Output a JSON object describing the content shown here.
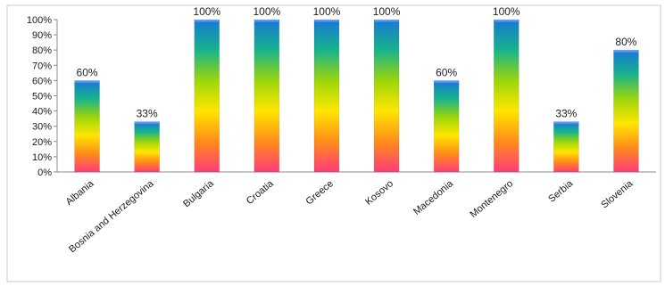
{
  "chart_data": {
    "type": "bar",
    "categories": [
      "Albania",
      "Bosnia and Herzegovina",
      "Bulgaria",
      "Croatia",
      "Greece",
      "Kosovo",
      "Macedonia",
      "Montenegro",
      "Serbia",
      "Slovenia"
    ],
    "values": [
      60,
      33,
      100,
      100,
      100,
      100,
      60,
      100,
      33,
      80
    ],
    "data_labels": [
      "60%",
      "33%",
      "100%",
      "100%",
      "100%",
      "100%",
      "60%",
      "100%",
      "33%",
      "80%"
    ],
    "y_ticks": [
      "0%",
      "10%",
      "20%",
      "30%",
      "40%",
      "50%",
      "60%",
      "70%",
      "80%",
      "90%",
      "100%"
    ],
    "ylim": [
      0,
      100
    ],
    "title": "",
    "xlabel": "",
    "ylabel": "",
    "grid": false,
    "legend": "none",
    "bar_gradient": [
      "#ff3c7a",
      "#ff8c1a",
      "#ffe600",
      "#9bd60a",
      "#17b38c",
      "#1778d6"
    ]
  }
}
